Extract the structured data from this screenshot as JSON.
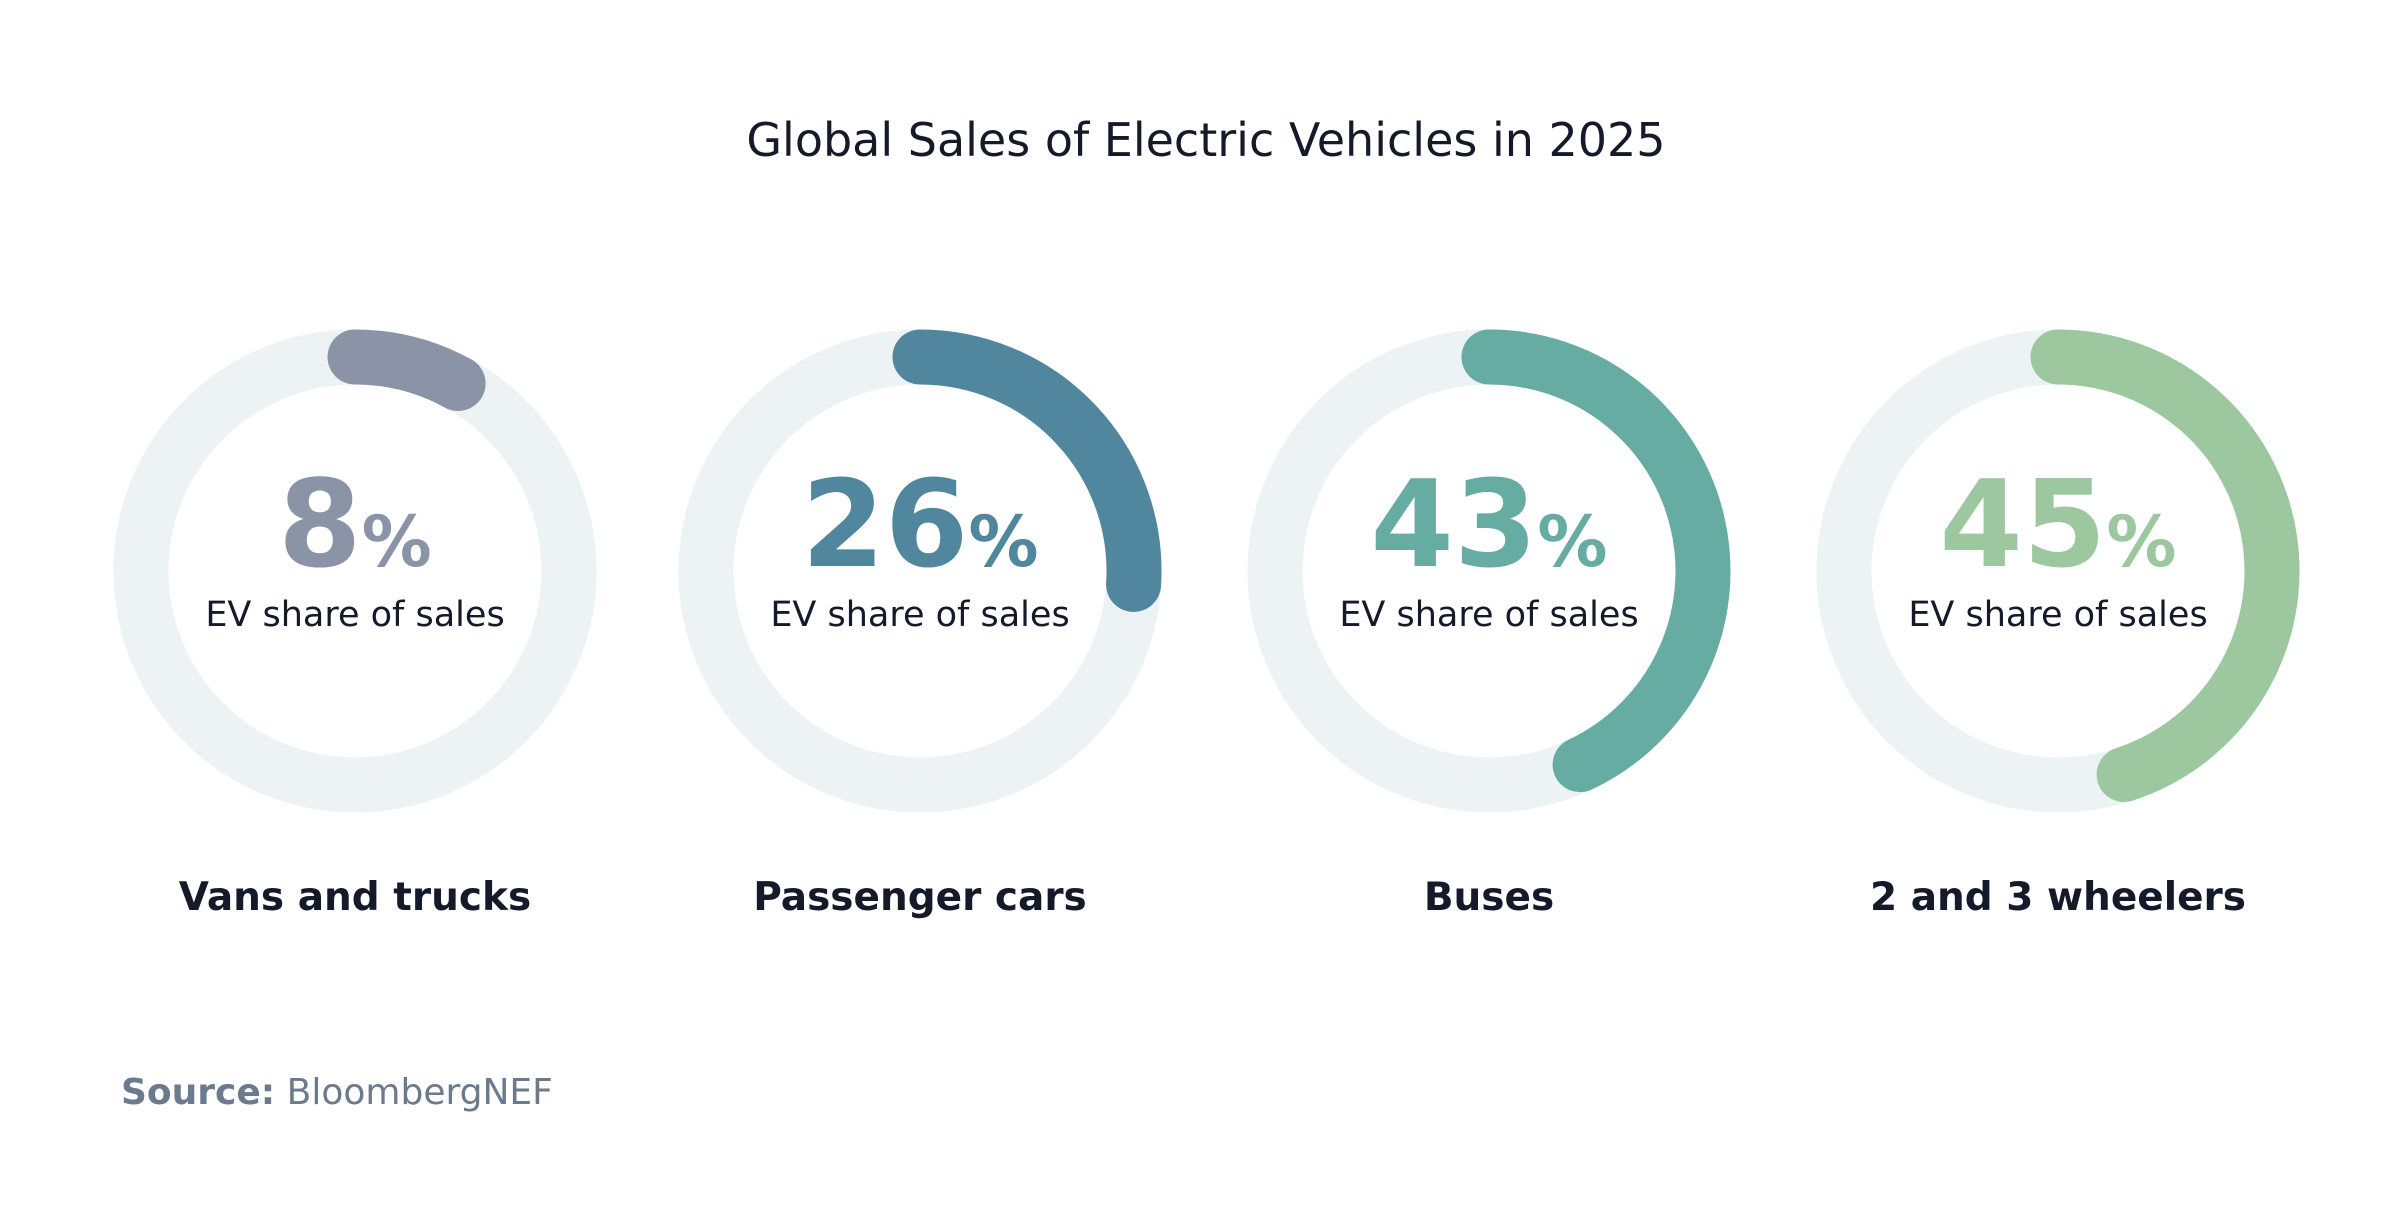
{
  "chart_data": {
    "type": "gauge",
    "title": "Global Sales of Electric Vehicles in 2025",
    "categories": [
      "Vans and trucks",
      "Passenger cars",
      "Buses",
      "2 and 3 wheelers"
    ],
    "values": [
      8,
      26,
      43,
      45
    ],
    "value_labels": [
      "8%",
      "26%",
      "43%",
      "45%"
    ],
    "colors": [
      "#8a94a6",
      "#50879f",
      "#66aca2",
      "#9cc79f"
    ],
    "center_label": "EV share of sales",
    "ylim": [
      0,
      100
    ],
    "source_label": "Source:",
    "source": "BloombergNEF"
  }
}
